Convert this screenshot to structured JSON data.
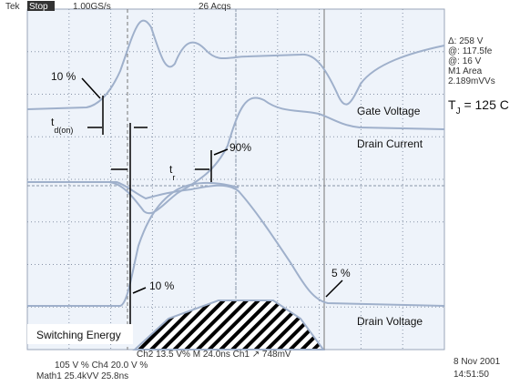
{
  "header": {
    "brand": "Tek",
    "state": "Stop",
    "rate": "1.00GS/s",
    "acqs": "26 Acqs"
  },
  "readouts": [
    "Δ: 258 V",
    "@: 117.5fe",
    "@: 16 V",
    "M1 Area",
    "2.189mVVs"
  ],
  "annotations": {
    "gate_10": "10 %",
    "td_on": {
      "base": "t",
      "sub": "d(on)"
    },
    "tr": {
      "base": "t",
      "sub": "r"
    },
    "p90": "90%",
    "current_10": "10 %",
    "v5": "5 %",
    "gate_voltage": "Gate Voltage",
    "drain_current": "Drain Current",
    "drain_voltage": "Drain Voltage",
    "switching_energy": "Switching Energy",
    "tj": {
      "base": "T",
      "sub": "J",
      "rest": " = 125 C"
    }
  },
  "footer": {
    "line1": "Ch2   13.5 V%   M 24.0ns   Ch1 ↗   748mV",
    "line2": "105 V  %  Ch4   20.0 V  %",
    "line3": "Math1   25.4kVV    25.8ns",
    "date": "8 Nov 2001",
    "time": "14:51:50"
  }
}
